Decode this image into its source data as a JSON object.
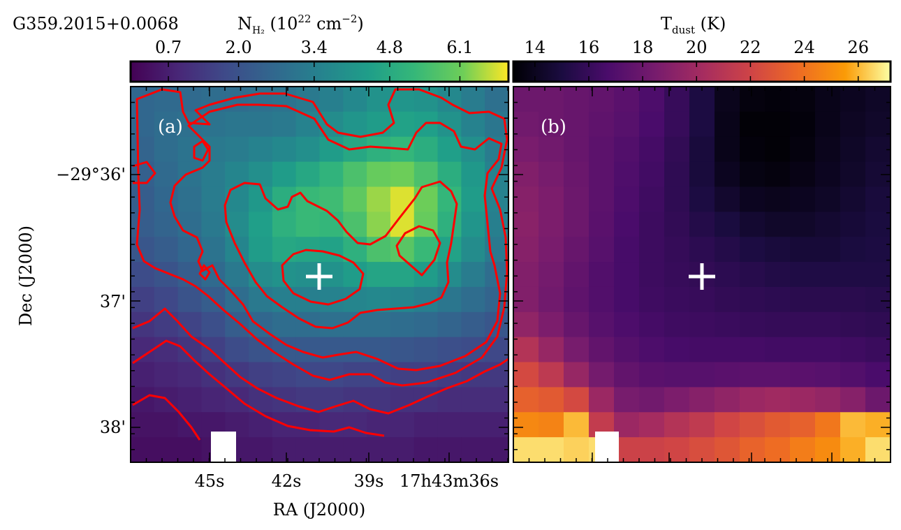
{
  "chart_data": [
    {
      "panel_label": "(a)",
      "type": "heatmap",
      "source_name": "G359.2015+0.0068",
      "colorbar_label": "N<sub>H2</sub> (10^22 cm^-2)",
      "colorbar_label_parts": {
        "main": "N",
        "sub": "H₂",
        "rest": " (10",
        "sup": "22",
        "rest2": " cm",
        "sup2": "−2",
        "rest3": ")"
      },
      "colormap": "viridis",
      "colorbar_range": [
        0.0,
        7.0
      ],
      "colorbar_ticks": [
        0.7,
        2.0,
        3.4,
        4.8,
        6.1
      ],
      "colorbar_tick_labels": [
        "0.7",
        "2.0",
        "3.4",
        "4.8",
        "6.1"
      ],
      "xlabel": "RA (J2000)",
      "ylabel": "Dec (J2000)",
      "x_tick_labels": [
        "45s",
        "42s",
        "39s",
        "17h43m36s"
      ],
      "y_tick_labels": [
        "−29°36'",
        "37'",
        "38'"
      ],
      "contour_color": "#ff0000",
      "marker": {
        "symbol": "+",
        "color": "#ffffff"
      },
      "grid_shape": [
        15,
        16
      ],
      "values": [
        [
          2.6,
          2.7,
          2.7,
          2.8,
          2.8,
          2.9,
          3.0,
          3.2,
          3.4,
          3.7,
          4.0,
          4.1,
          4.0,
          3.7,
          3.3,
          2.9
        ],
        [
          2.6,
          2.8,
          2.9,
          3.0,
          3.1,
          3.1,
          3.2,
          3.5,
          3.8,
          4.1,
          4.3,
          4.5,
          4.4,
          4.0,
          3.5,
          3.1
        ],
        [
          2.5,
          2.8,
          3.0,
          3.2,
          3.3,
          3.5,
          3.7,
          3.9,
          4.3,
          4.7,
          5.0,
          5.2,
          4.9,
          4.4,
          3.9,
          3.3
        ],
        [
          2.4,
          2.7,
          3.0,
          3.3,
          3.6,
          3.9,
          4.3,
          4.7,
          5.1,
          5.6,
          6.0,
          6.1,
          5.6,
          4.9,
          4.2,
          3.5
        ],
        [
          2.3,
          2.6,
          2.9,
          3.3,
          3.7,
          4.2,
          4.9,
          5.3,
          5.4,
          5.9,
          6.4,
          6.8,
          6.1,
          5.2,
          4.3,
          3.5
        ],
        [
          2.3,
          2.5,
          2.8,
          3.2,
          3.8,
          4.4,
          5.0,
          5.3,
          5.2,
          5.6,
          6.3,
          6.8,
          6.0,
          5.0,
          4.1,
          3.4
        ],
        [
          2.1,
          2.3,
          2.6,
          3.0,
          3.6,
          4.3,
          4.7,
          4.6,
          4.5,
          5.0,
          5.6,
          5.8,
          5.3,
          4.5,
          3.8,
          3.2
        ],
        [
          1.8,
          2.0,
          2.3,
          2.7,
          3.2,
          3.8,
          4.0,
          3.9,
          4.0,
          4.3,
          4.6,
          4.6,
          4.3,
          3.8,
          3.3,
          2.8
        ],
        [
          1.5,
          1.7,
          2.0,
          2.3,
          2.8,
          3.2,
          3.4,
          3.4,
          3.5,
          3.6,
          3.7,
          3.6,
          3.4,
          3.1,
          2.8,
          2.5
        ],
        [
          1.2,
          1.4,
          1.6,
          1.9,
          2.3,
          2.6,
          2.8,
          2.8,
          2.9,
          2.9,
          2.9,
          2.8,
          2.7,
          2.5,
          2.3,
          2.1
        ],
        [
          0.9,
          1.0,
          1.2,
          1.5,
          1.8,
          2.0,
          2.2,
          2.2,
          2.2,
          2.2,
          2.2,
          2.1,
          2.0,
          1.9,
          1.8,
          1.7
        ],
        [
          0.7,
          0.8,
          0.9,
          1.1,
          1.3,
          1.5,
          1.6,
          1.7,
          1.7,
          1.6,
          1.6,
          1.5,
          1.5,
          1.4,
          1.3,
          1.3
        ],
        [
          0.5,
          0.6,
          0.7,
          0.8,
          0.9,
          1.1,
          1.2,
          1.3,
          1.3,
          1.2,
          1.2,
          1.1,
          1.1,
          1.0,
          1.0,
          1.0
        ],
        [
          0.4,
          0.4,
          0.5,
          0.5,
          0.6,
          0.7,
          0.8,
          0.8,
          0.9,
          0.9,
          0.8,
          0.8,
          0.7,
          0.7,
          0.7,
          0.7
        ],
        [
          0.3,
          0.3,
          0.3,
          0.4,
          0.5,
          0.5,
          0.6,
          0.6,
          0.6,
          0.6,
          0.6,
          0.6,
          0.5,
          0.5,
          0.5,
          0.5
        ]
      ]
    },
    {
      "panel_label": "(b)",
      "type": "heatmap",
      "colorbar_label_parts": {
        "main": "T",
        "sub": "dust",
        "rest": " (K)"
      },
      "colormap": "inferno",
      "colorbar_range": [
        13.2,
        27.2
      ],
      "colorbar_ticks": [
        14,
        16,
        18,
        20,
        22,
        24,
        26
      ],
      "colorbar_tick_labels": [
        "14",
        "16",
        "18",
        "20",
        "22",
        "24",
        "26"
      ],
      "marker": {
        "symbol": "+",
        "color": "#ffffff"
      },
      "grid_shape": [
        15,
        15
      ],
      "values": [
        [
          18.0,
          18.0,
          17.8,
          17.6,
          17.3,
          16.8,
          16.0,
          15.0,
          13.9,
          13.5,
          13.4,
          13.5,
          13.8,
          14.0,
          14.2
        ],
        [
          18.2,
          18.0,
          17.8,
          17.5,
          17.2,
          16.7,
          16.0,
          15.0,
          13.8,
          13.3,
          13.3,
          13.4,
          13.8,
          14.1,
          14.3
        ],
        [
          18.5,
          18.2,
          17.8,
          17.4,
          17.0,
          16.5,
          15.8,
          14.8,
          13.8,
          13.4,
          13.3,
          13.5,
          13.9,
          14.2,
          14.5
        ],
        [
          18.8,
          18.4,
          17.9,
          17.4,
          16.9,
          16.4,
          15.7,
          14.8,
          14.0,
          13.6,
          13.5,
          13.7,
          14.0,
          14.3,
          14.6
        ],
        [
          19.0,
          18.6,
          18.0,
          17.4,
          16.8,
          16.3,
          15.7,
          15.0,
          14.4,
          14.0,
          13.9,
          14.0,
          14.2,
          14.5,
          14.8
        ],
        [
          19.1,
          18.6,
          18.0,
          17.3,
          16.7,
          16.2,
          15.8,
          15.3,
          14.9,
          14.5,
          14.3,
          14.3,
          14.5,
          14.7,
          14.9
        ],
        [
          19.0,
          18.5,
          17.8,
          17.2,
          16.6,
          16.2,
          15.9,
          15.6,
          15.3,
          15.0,
          14.8,
          14.7,
          14.7,
          14.9,
          15.0
        ],
        [
          18.8,
          18.3,
          17.6,
          17.0,
          16.6,
          16.2,
          16.0,
          15.8,
          15.6,
          15.4,
          15.2,
          15.1,
          15.1,
          15.1,
          15.1
        ],
        [
          18.8,
          18.2,
          17.5,
          17.0,
          16.6,
          16.3,
          16.1,
          16.0,
          15.8,
          15.7,
          15.6,
          15.5,
          15.5,
          15.5,
          15.4
        ],
        [
          19.4,
          18.6,
          17.8,
          17.2,
          16.8,
          16.5,
          16.3,
          16.2,
          16.1,
          16.0,
          15.9,
          15.9,
          15.9,
          15.8,
          15.7
        ],
        [
          20.8,
          19.6,
          18.4,
          17.6,
          17.1,
          16.8,
          16.6,
          16.5,
          16.5,
          16.5,
          16.4,
          16.4,
          16.4,
          16.3,
          16.1
        ],
        [
          22.2,
          21.2,
          19.6,
          18.3,
          17.6,
          17.3,
          17.2,
          17.2,
          17.3,
          17.4,
          17.4,
          17.3,
          17.2,
          17.0,
          16.7
        ],
        [
          23.3,
          23.0,
          22.2,
          19.8,
          18.4,
          18.2,
          18.6,
          19.0,
          19.4,
          19.8,
          20.0,
          19.8,
          19.5,
          19.0,
          18.0
        ],
        [
          24.8,
          24.6,
          26.0,
          21.4,
          19.8,
          20.2,
          20.8,
          21.3,
          22.0,
          22.5,
          23.0,
          23.3,
          24.2,
          26.0,
          25.8
        ],
        [
          26.6,
          26.6,
          26.4,
          26.6,
          21.8,
          21.8,
          22.0,
          22.4,
          22.8,
          23.4,
          23.8,
          24.4,
          24.9,
          25.8,
          26.6
        ]
      ]
    }
  ]
}
